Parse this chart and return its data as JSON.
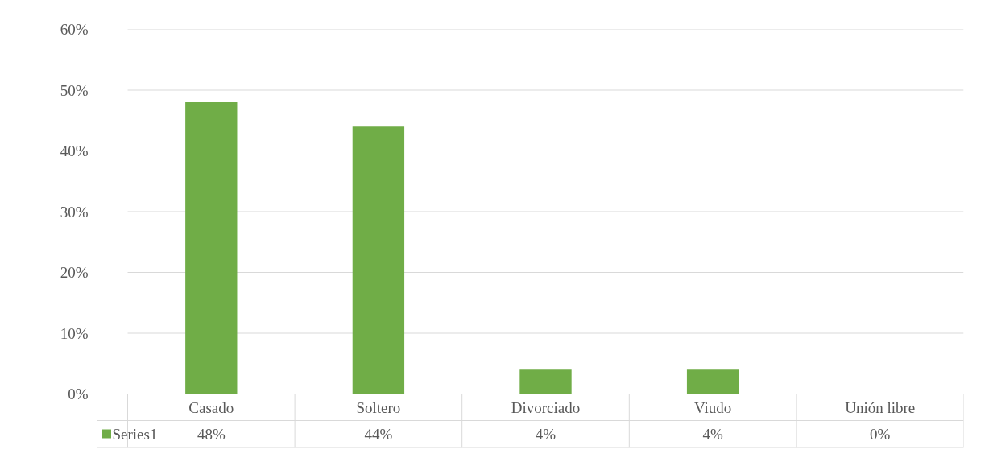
{
  "chart_data": {
    "type": "bar",
    "categories": [
      "Casado",
      "Soltero",
      "Divorciado",
      "Viudo",
      "Unión libre"
    ],
    "series": [
      {
        "name": "Series1",
        "color": "#70ad47",
        "values": [
          48,
          44,
          4,
          4,
          0
        ],
        "value_labels": [
          "48%",
          "44%",
          "4%",
          "4%",
          "0%"
        ]
      }
    ],
    "ylim": [
      0,
      60
    ],
    "yticks": [
      {
        "value": 0,
        "label": "0%"
      },
      {
        "value": 10,
        "label": "10%"
      },
      {
        "value": 20,
        "label": "20%"
      },
      {
        "value": 30,
        "label": "30%"
      },
      {
        "value": 40,
        "label": "40%"
      },
      {
        "value": 50,
        "label": "50%"
      },
      {
        "value": 60,
        "label": "60%"
      }
    ],
    "grid": "y",
    "legend": "bottom"
  }
}
